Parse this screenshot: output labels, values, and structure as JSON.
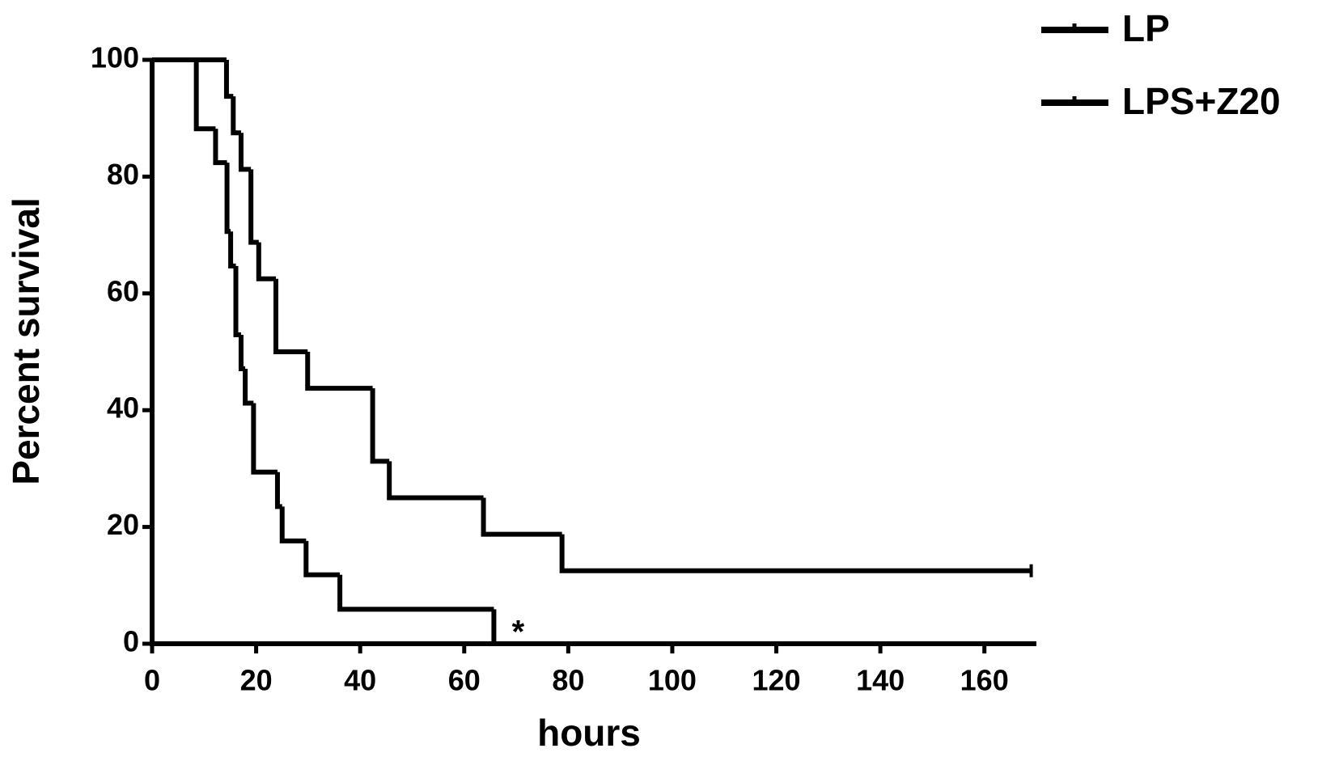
{
  "chart_data": {
    "type": "survival",
    "x_label": "hours",
    "y_label": "Percent survival",
    "xlim": [
      0,
      170
    ],
    "ylim": [
      0,
      100
    ],
    "xticks": [
      0,
      20,
      40,
      60,
      80,
      100,
      120,
      140,
      160
    ],
    "yticks": [
      0,
      20,
      40,
      60,
      80,
      100
    ],
    "legend": "upper right",
    "annotation": "*",
    "series": [
      {
        "name": "LP",
        "color": "#000000",
        "x": [
          0,
          14.3,
          15.6,
          17.1,
          19.0,
          20.5,
          23.8,
          29.9,
          42.4,
          45.6,
          63.7,
          78.8,
          169
        ],
        "values": [
          100,
          93.75,
          87.5,
          81.25,
          68.75,
          62.5,
          50,
          43.75,
          31.25,
          25,
          18.75,
          12.5,
          12.5
        ]
      },
      {
        "name": "LPS+Z20",
        "color": "#000000",
        "x": [
          0,
          8.5,
          12.2,
          14.4,
          15.1,
          16.1,
          17.1,
          17.9,
          19.5,
          24.1,
          25.0,
          29.6,
          36.1,
          65.7
        ],
        "values": [
          100,
          88.2,
          82.4,
          70.6,
          64.7,
          52.9,
          47.1,
          41.2,
          29.4,
          23.5,
          17.6,
          11.8,
          5.9,
          0
        ]
      }
    ]
  }
}
